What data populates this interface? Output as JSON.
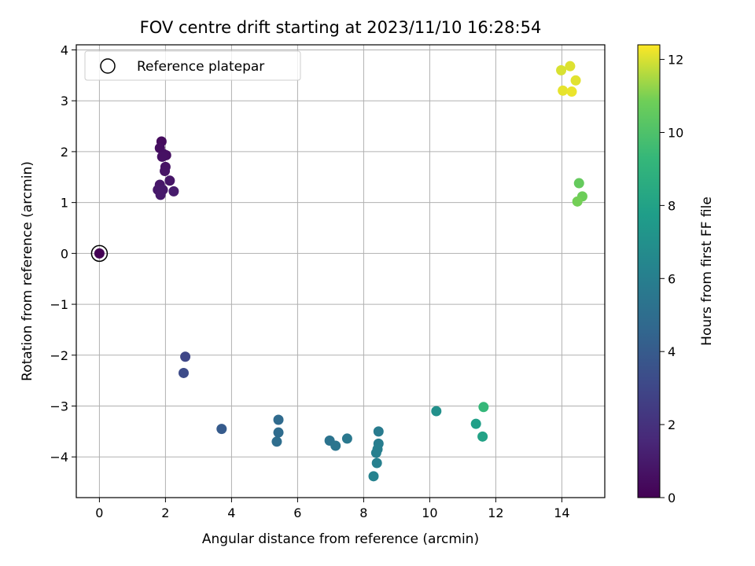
{
  "chart_data": {
    "type": "scatter",
    "title": "FOV centre drift starting at 2023/11/10 16:28:54",
    "xlabel": "Angular distance from reference (arcmin)",
    "ylabel": "Rotation from reference (arcmin)",
    "xlim": [
      -0.7,
      15.3
    ],
    "ylim": [
      -4.8,
      4.1
    ],
    "xticks": [
      0,
      2,
      4,
      6,
      8,
      10,
      12,
      14
    ],
    "yticks": [
      -4,
      -3,
      -2,
      -1,
      0,
      1,
      2,
      3,
      4
    ],
    "xtick_labels": [
      "0",
      "2",
      "4",
      "6",
      "8",
      "10",
      "12",
      "14"
    ],
    "ytick_labels": [
      "−4",
      "−3",
      "−2",
      "−1",
      "0",
      "1",
      "2",
      "3",
      "4"
    ],
    "grid": true,
    "legend": {
      "placement": "top-left",
      "entries": [
        {
          "label": "Reference platepar",
          "marker": "open-circle"
        }
      ]
    },
    "colorbar": {
      "label": "Hours from first FF file",
      "colormap": "viridis",
      "range": [
        0,
        12.4
      ],
      "ticks": [
        0,
        2,
        4,
        6,
        8,
        10,
        12
      ],
      "tick_labels": [
        "0",
        "2",
        "4",
        "6",
        "8",
        "10",
        "12"
      ]
    },
    "series": [
      {
        "points": [
          {
            "x": 0.0,
            "y": 0.0,
            "c": 0.0
          },
          {
            "x": 1.88,
            "y": 2.2,
            "c": 0.4
          },
          {
            "x": 1.83,
            "y": 2.07,
            "c": 0.5
          },
          {
            "x": 1.95,
            "y": 1.95,
            "c": 0.55
          },
          {
            "x": 2.02,
            "y": 1.93,
            "c": 0.6
          },
          {
            "x": 1.9,
            "y": 1.9,
            "c": 0.65
          },
          {
            "x": 2.0,
            "y": 1.7,
            "c": 0.7
          },
          {
            "x": 1.98,
            "y": 1.62,
            "c": 0.75
          },
          {
            "x": 2.13,
            "y": 1.43,
            "c": 0.8
          },
          {
            "x": 1.83,
            "y": 1.35,
            "c": 0.85
          },
          {
            "x": 1.77,
            "y": 1.25,
            "c": 0.9
          },
          {
            "x": 1.92,
            "y": 1.25,
            "c": 0.95
          },
          {
            "x": 1.85,
            "y": 1.15,
            "c": 1.0
          },
          {
            "x": 2.25,
            "y": 1.22,
            "c": 1.05
          },
          {
            "x": 2.6,
            "y": -2.03,
            "c": 3.0
          },
          {
            "x": 2.55,
            "y": -2.35,
            "c": 3.2
          },
          {
            "x": 3.7,
            "y": -3.45,
            "c": 4.0
          },
          {
            "x": 5.42,
            "y": -3.27,
            "c": 4.8
          },
          {
            "x": 5.42,
            "y": -3.52,
            "c": 4.9
          },
          {
            "x": 5.37,
            "y": -3.7,
            "c": 5.0
          },
          {
            "x": 6.97,
            "y": -3.68,
            "c": 5.3
          },
          {
            "x": 7.15,
            "y": -3.78,
            "c": 5.4
          },
          {
            "x": 7.5,
            "y": -3.64,
            "c": 5.6
          },
          {
            "x": 8.45,
            "y": -3.5,
            "c": 5.8
          },
          {
            "x": 8.45,
            "y": -3.74,
            "c": 5.9
          },
          {
            "x": 8.42,
            "y": -3.85,
            "c": 6.0
          },
          {
            "x": 8.38,
            "y": -3.92,
            "c": 6.05
          },
          {
            "x": 8.4,
            "y": -4.12,
            "c": 6.1
          },
          {
            "x": 8.3,
            "y": -4.38,
            "c": 6.2
          },
          {
            "x": 10.2,
            "y": -3.1,
            "c": 7.0
          },
          {
            "x": 11.4,
            "y": -3.35,
            "c": 7.8
          },
          {
            "x": 11.6,
            "y": -3.6,
            "c": 8.0
          },
          {
            "x": 11.63,
            "y": -3.02,
            "c": 9.3
          },
          {
            "x": 14.52,
            "y": 1.38,
            "c": 10.6
          },
          {
            "x": 14.62,
            "y": 1.12,
            "c": 10.8
          },
          {
            "x": 14.47,
            "y": 1.02,
            "c": 10.9
          },
          {
            "x": 13.98,
            "y": 3.6,
            "c": 12.0
          },
          {
            "x": 14.25,
            "y": 3.68,
            "c": 12.05
          },
          {
            "x": 14.42,
            "y": 3.4,
            "c": 12.1
          },
          {
            "x": 14.03,
            "y": 3.2,
            "c": 12.15
          },
          {
            "x": 14.3,
            "y": 3.18,
            "c": 12.2
          }
        ]
      }
    ],
    "reference_point": {
      "x": 0.0,
      "y": 0.0
    }
  }
}
